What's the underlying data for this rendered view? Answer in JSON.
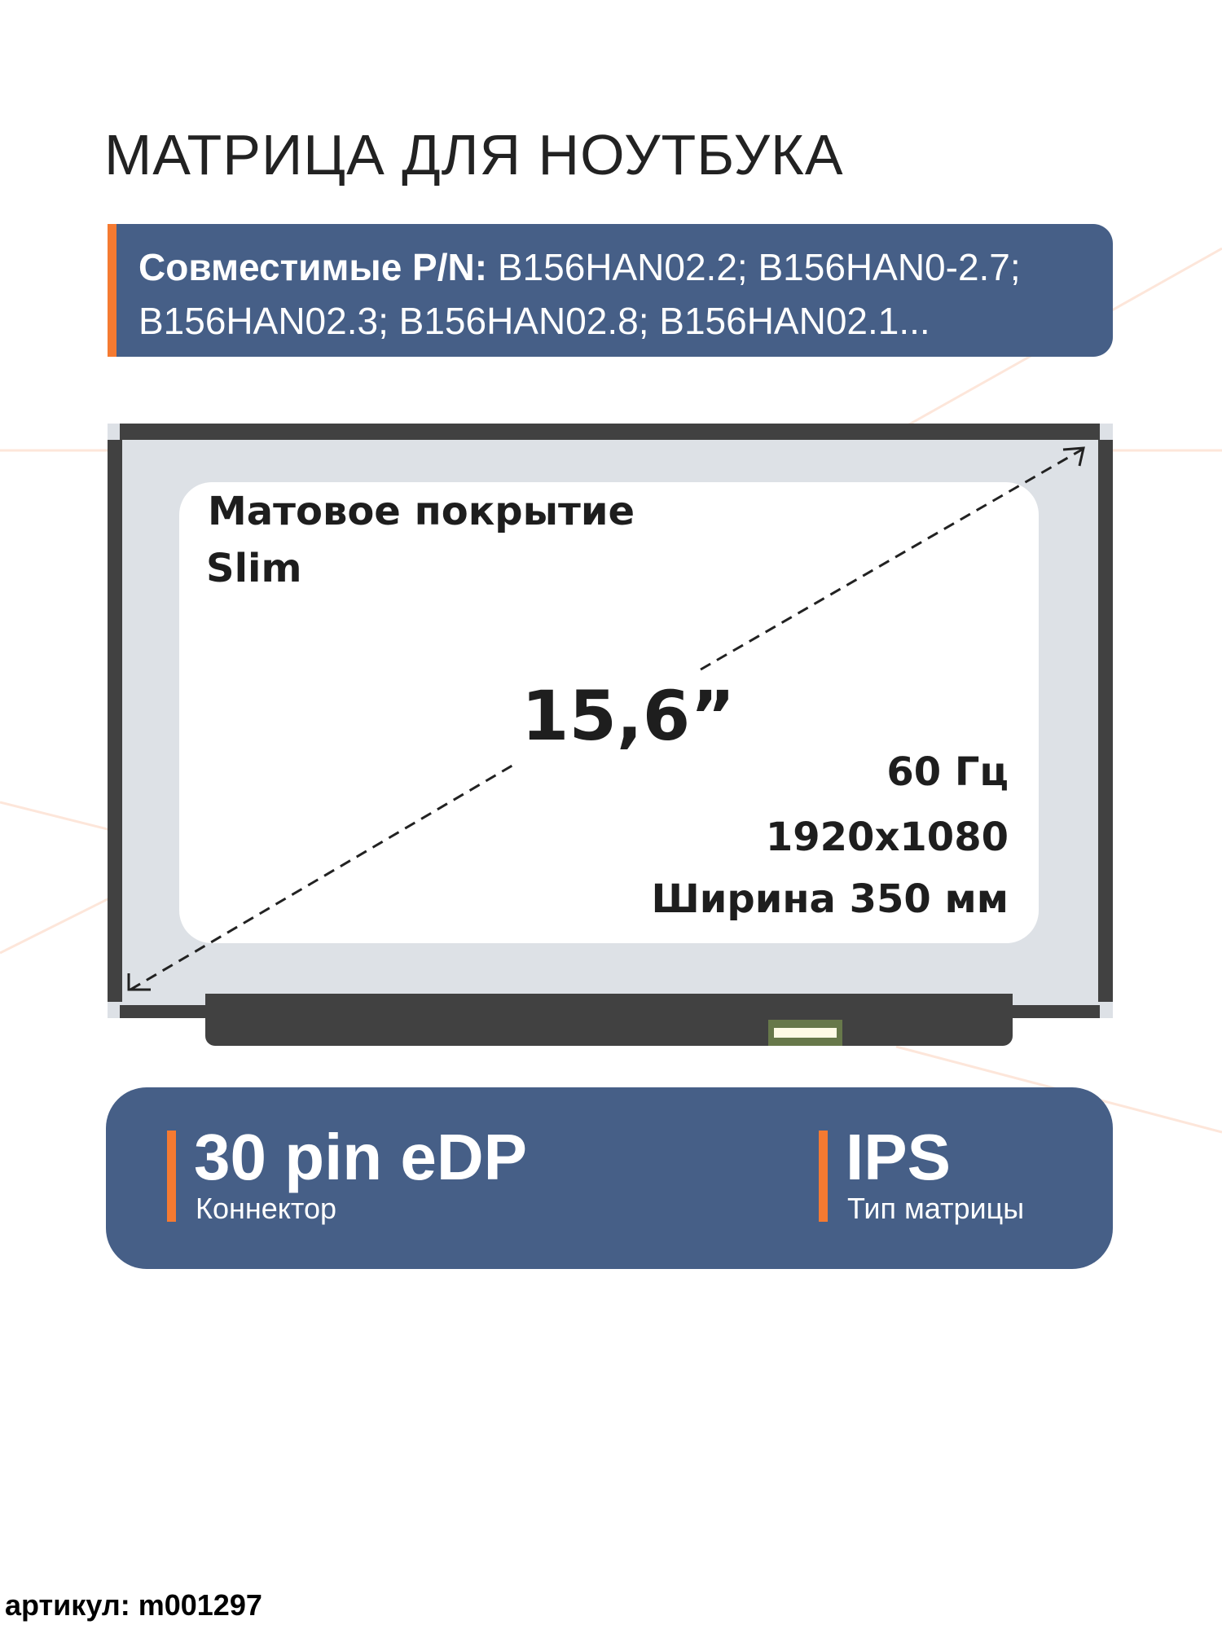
{
  "title": "МАТРИЦА ДЛЯ НОУТБУКА",
  "compatible": {
    "label": "Совместимые P/N:",
    "value": " B156HAN02.2; B156HAN0-2.7; B156HAN02.3; B156HAN02.8; B156HAN02.1..."
  },
  "screen": {
    "coating": "Матовое покрытие",
    "type": "Slim",
    "diagonal": "15,6”",
    "refresh": "60 Гц",
    "resolution": "1920x1080",
    "width": "Ширина 350 мм"
  },
  "features": [
    {
      "value": "30 pin eDP",
      "label": "Коннектор"
    },
    {
      "value": "IPS",
      "label": "Тип матрицы"
    }
  ],
  "article": "артикул: m001297",
  "colors": {
    "accent": "#f57a31",
    "panel": "#465f87",
    "bezel": "#414141",
    "screen": "#dde1e6"
  }
}
